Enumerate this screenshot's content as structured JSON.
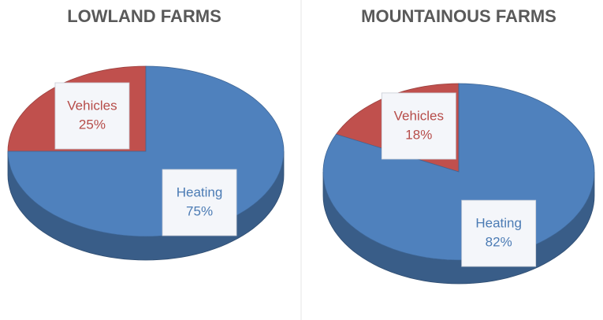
{
  "chart_data": [
    {
      "type": "pie",
      "title": "LOWLAND FARMS",
      "categories": [
        "Vehicles",
        "Heating"
      ],
      "values": [
        25,
        75
      ],
      "value_labels": [
        "25%",
        "75%"
      ],
      "colors": [
        "#c0504d",
        "#4f81bd"
      ]
    },
    {
      "type": "pie",
      "title": "MOUNTAINOUS FARMS",
      "categories": [
        "Vehicles",
        "Heating"
      ],
      "values": [
        18,
        82
      ],
      "value_labels": [
        "18%",
        "82%"
      ],
      "colors": [
        "#c0504d",
        "#4f81bd"
      ]
    }
  ]
}
